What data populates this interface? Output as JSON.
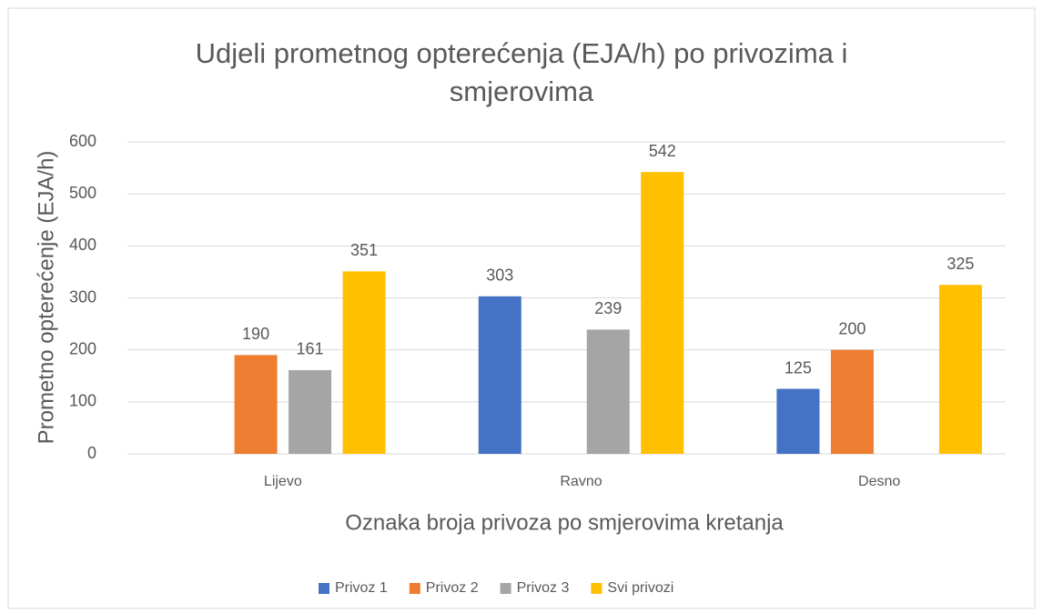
{
  "chart_data": {
    "type": "bar",
    "title": "Udjeli prometnog opterećenja (EJA/h) po privozima i smjerovima",
    "y_label": "Prometno opterećenje (EJA/h)",
    "x_label": "Oznaka broja privoza po smjerovima kretanja",
    "categories": [
      "Lijevo",
      "Ravno",
      "Desno"
    ],
    "series": [
      {
        "name": "Privoz 1",
        "color": "#4472c4",
        "values": [
          null,
          303,
          125
        ]
      },
      {
        "name": "Privoz 2",
        "color": "#ed7d31",
        "values": [
          190,
          null,
          200
        ]
      },
      {
        "name": "Privoz 3",
        "color": "#a5a5a5",
        "values": [
          161,
          239,
          null
        ]
      },
      {
        "name": "Svi privozi",
        "color": "#ffc000",
        "values": [
          351,
          542,
          325
        ]
      }
    ],
    "ylim": [
      0,
      600
    ],
    "yticks": [
      0,
      100,
      200,
      300,
      400,
      500,
      600
    ],
    "grid": true,
    "legend": "bottom"
  }
}
